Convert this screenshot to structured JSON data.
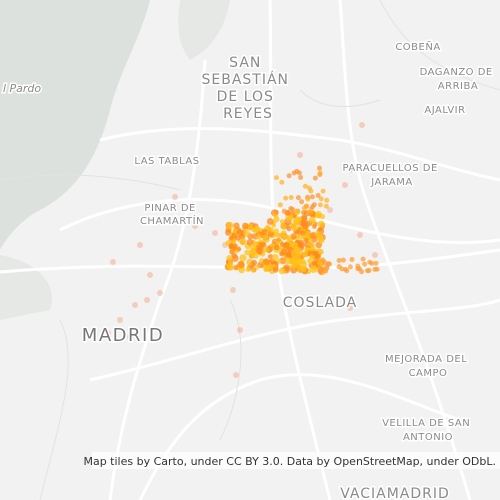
{
  "labels": [
    {
      "lines": [
        "l Pardo"
      ]
    },
    {
      "lines": [
        "SAN",
        "SEBASTIÁN",
        "DE LOS",
        "REYES"
      ]
    },
    {
      "lines": [
        "COBEÑA"
      ]
    },
    {
      "lines": [
        "DAGANZO DE",
        "ARRIBA"
      ]
    },
    {
      "lines": [
        "AJALVIR"
      ]
    },
    {
      "lines": [
        "LAS TABLAS"
      ]
    },
    {
      "lines": [
        "PARACUELLOS DE",
        "JARAMA"
      ]
    },
    {
      "lines": [
        "PINAR DE",
        "CHAMARTÍN"
      ]
    },
    {
      "lines": [
        "MADRID"
      ]
    },
    {
      "lines": [
        "COSLADA"
      ]
    },
    {
      "lines": [
        "MEJORADA DEL",
        "CAMPO"
      ]
    },
    {
      "lines": [
        "VELILLA DE SAN",
        "ANTONIO"
      ]
    },
    {
      "lines": [
        "VACIAMADRID"
      ]
    }
  ],
  "attribution": "Map tiles by Carto, under CC BY 3.0. Data by OpenStreetMap, under ODbL."
}
